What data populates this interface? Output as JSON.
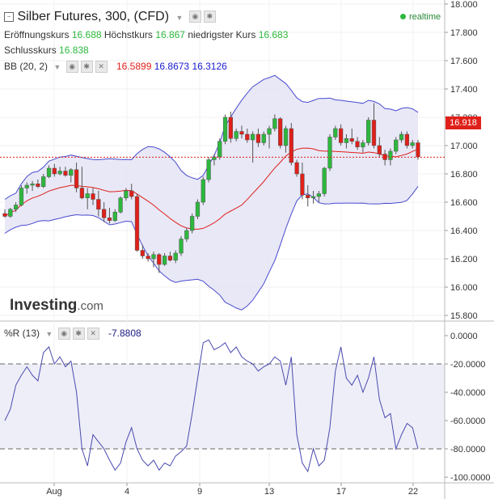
{
  "header": {
    "title": "Silber Futures, 300, (CFD)",
    "realtime": "realtime",
    "open_label": "Eröffnungskurs",
    "open": "16.688",
    "high_label": "Höchstkurs",
    "high": "16.867",
    "low_label": "niedrigster Kurs",
    "low": "16.683",
    "close_label": "Schlusskurs",
    "close": "16.838",
    "bb_label": "BB (20, 2)",
    "bb_mid": "16.5899",
    "bb_upper": "16.8673",
    "bb_lower": "16.3126",
    "wr_label": "%R (13)",
    "wr_value": "-7.8808",
    "last_price": "16.918"
  },
  "logo": {
    "main": "Investing",
    "suffix": ".com"
  },
  "colors": {
    "up": "#2db83d",
    "down": "#e0201a",
    "band": "#4a4ad0",
    "band_fill": "#e4e4f4",
    "mid": "#e0201a",
    "wr": "#4a4ab0"
  },
  "chart_data": [
    {
      "type": "candlestick",
      "title": "Silber Futures, 300, (CFD)",
      "ylim": [
        15.8,
        18.0
      ],
      "y_ticks": [
        "18.000",
        "17.800",
        "17.600",
        "17.400",
        "17.200",
        "17.000",
        "16.800",
        "16.600",
        "16.400",
        "16.200",
        "16.000",
        "15.800"
      ],
      "x_ticks": [
        "Aug",
        "4",
        "9",
        "13",
        "17",
        "22"
      ],
      "last_price": 16.918,
      "candles": [
        [
          16.52,
          16.55,
          16.49,
          16.5
        ],
        [
          16.5,
          16.56,
          16.49,
          16.55
        ],
        [
          16.55,
          16.6,
          16.53,
          16.58
        ],
        [
          16.58,
          16.72,
          16.57,
          16.7
        ],
        [
          16.7,
          16.74,
          16.66,
          16.72
        ],
        [
          16.72,
          16.75,
          16.68,
          16.73
        ],
        [
          16.73,
          16.76,
          16.7,
          16.71
        ],
        [
          16.71,
          16.8,
          16.7,
          16.78
        ],
        [
          16.78,
          16.86,
          16.77,
          16.84
        ],
        [
          16.84,
          16.87,
          16.78,
          16.8
        ],
        [
          16.8,
          16.85,
          16.79,
          16.82
        ],
        [
          16.82,
          16.85,
          16.78,
          16.79
        ],
        [
          16.79,
          16.84,
          16.74,
          16.83
        ],
        [
          16.83,
          16.88,
          16.67,
          16.7
        ],
        [
          16.7,
          16.85,
          16.62,
          16.63
        ],
        [
          16.63,
          16.7,
          16.55,
          16.66
        ],
        [
          16.66,
          16.7,
          16.58,
          16.62
        ],
        [
          16.62,
          16.68,
          16.5,
          16.55
        ],
        [
          16.55,
          16.6,
          16.46,
          16.49
        ],
        [
          16.49,
          16.56,
          16.45,
          16.47
        ],
        [
          16.47,
          16.55,
          16.46,
          16.53
        ],
        [
          16.53,
          16.64,
          16.52,
          16.63
        ],
        [
          16.63,
          16.7,
          16.61,
          16.68
        ],
        [
          16.68,
          16.73,
          16.62,
          16.64
        ],
        [
          16.64,
          16.66,
          16.25,
          16.26
        ],
        [
          16.26,
          16.3,
          16.2,
          16.22
        ],
        [
          16.22,
          16.24,
          16.18,
          16.2
        ],
        [
          16.2,
          16.25,
          16.14,
          16.23
        ],
        [
          16.23,
          16.24,
          16.1,
          16.16
        ],
        [
          16.16,
          16.24,
          16.15,
          16.22
        ],
        [
          16.22,
          16.25,
          16.18,
          16.19
        ],
        [
          16.19,
          16.26,
          16.17,
          16.24
        ],
        [
          16.24,
          16.36,
          16.22,
          16.34
        ],
        [
          16.34,
          16.42,
          16.32,
          16.4
        ],
        [
          16.4,
          16.52,
          16.38,
          16.5
        ],
        [
          16.5,
          16.62,
          16.48,
          16.6
        ],
        [
          16.6,
          16.78,
          16.58,
          16.76
        ],
        [
          16.76,
          16.92,
          16.74,
          16.9
        ],
        [
          16.9,
          16.94,
          16.86,
          16.92
        ],
        [
          16.92,
          17.05,
          16.9,
          17.03
        ],
        [
          17.03,
          17.22,
          17.01,
          17.2
        ],
        [
          17.2,
          17.24,
          17.02,
          17.05
        ],
        [
          17.05,
          17.12,
          17.03,
          17.1
        ],
        [
          17.1,
          17.14,
          17.05,
          17.08
        ],
        [
          17.08,
          17.12,
          17.02,
          17.04
        ],
        [
          17.04,
          17.1,
          16.88,
          17.08
        ],
        [
          17.08,
          17.12,
          16.99,
          17.02
        ],
        [
          17.02,
          17.1,
          17.0,
          17.08
        ],
        [
          17.08,
          17.14,
          16.98,
          17.12
        ],
        [
          17.12,
          17.22,
          17.1,
          17.19
        ],
        [
          17.19,
          17.2,
          16.98,
          17.0
        ],
        [
          17.0,
          17.14,
          16.95,
          17.12
        ],
        [
          17.12,
          17.16,
          16.86,
          16.88
        ],
        [
          16.88,
          16.9,
          16.78,
          16.8
        ],
        [
          16.8,
          16.88,
          16.62,
          16.65
        ],
        [
          16.65,
          16.72,
          16.57,
          16.63
        ],
        [
          16.63,
          16.68,
          16.59,
          16.64
        ],
        [
          16.64,
          16.68,
          16.6,
          16.66
        ],
        [
          16.66,
          16.85,
          16.64,
          16.84
        ],
        [
          16.84,
          17.08,
          16.82,
          17.06
        ],
        [
          17.06,
          17.14,
          17.04,
          17.12
        ],
        [
          17.12,
          17.15,
          17.0,
          17.02
        ],
        [
          17.02,
          17.08,
          16.98,
          17.05
        ],
        [
          17.05,
          17.12,
          17.01,
          17.03
        ],
        [
          17.03,
          17.06,
          16.97,
          16.99
        ],
        [
          16.99,
          17.04,
          16.95,
          17.02
        ],
        [
          17.02,
          17.2,
          17.0,
          17.18
        ],
        [
          17.18,
          17.3,
          16.98,
          17.0
        ],
        [
          17.0,
          17.06,
          16.92,
          16.94
        ],
        [
          16.94,
          16.97,
          16.86,
          16.9
        ],
        [
          16.9,
          16.98,
          16.86,
          16.96
        ],
        [
          16.96,
          17.06,
          16.94,
          17.04
        ],
        [
          17.04,
          17.1,
          17.02,
          17.08
        ],
        [
          17.08,
          17.1,
          16.98,
          17.0
        ],
        [
          17.0,
          17.04,
          16.98,
          17.02
        ],
        [
          17.02,
          17.04,
          16.9,
          16.92
        ]
      ]
    },
    {
      "type": "line",
      "title": "%R (13)",
      "ylim": [
        -100,
        0
      ],
      "y_ticks": [
        "0.0000",
        "-20.0000",
        "-40.0000",
        "-60.0000",
        "-80.0000",
        "-100.0000"
      ],
      "bands": [
        -20,
        -80
      ],
      "values": [
        -60,
        -52,
        -35,
        -28,
        -22,
        -28,
        -32,
        -12,
        -8,
        -20,
        -15,
        -22,
        -18,
        -40,
        -80,
        -92,
        -70,
        -75,
        -80,
        -88,
        -95,
        -90,
        -75,
        -65,
        -80,
        -88,
        -92,
        -88,
        -95,
        -90,
        -92,
        -85,
        -82,
        -78,
        -55,
        -30,
        -5,
        -3,
        -10,
        -8,
        -5,
        -12,
        -8,
        -15,
        -18,
        -20,
        -25,
        -22,
        -20,
        -15,
        -18,
        -35,
        -15,
        -70,
        -90,
        -96,
        -80,
        -92,
        -88,
        -65,
        -25,
        -8,
        -30,
        -35,
        -28,
        -40,
        -30,
        -15,
        -45,
        -58,
        -55,
        -80,
        -70,
        -62,
        -65,
        -80
      ]
    }
  ]
}
